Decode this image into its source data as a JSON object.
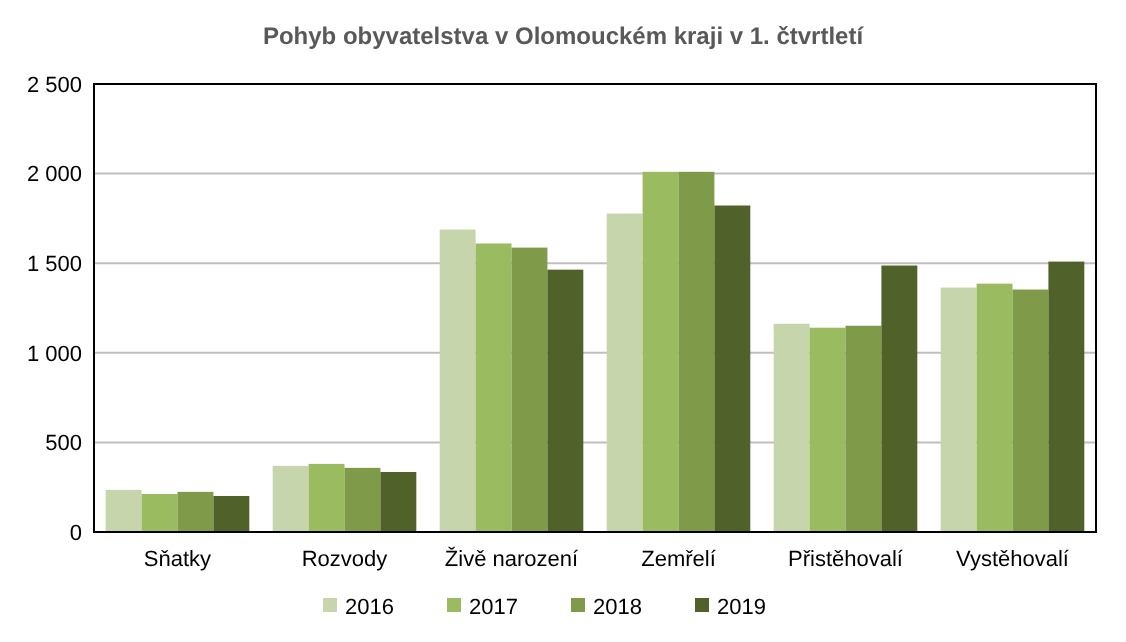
{
  "chart_data": {
    "type": "bar",
    "title": "Pohyb obyvatelstva  v Olomouckém kraji v 1. čtvrtletí",
    "categories": [
      "Sňatky",
      "Rozvody",
      "Živě narození",
      "Zemřelí",
      "Přistěhovalí",
      "Vystěhovalí"
    ],
    "series": [
      {
        "name": "2016",
        "color": "#c6d5ac",
        "values": [
          235,
          369,
          1688,
          1777,
          1162,
          1364
        ]
      },
      {
        "name": "2017",
        "color": "#9bbb61",
        "values": [
          212,
          380,
          1610,
          2010,
          1140,
          1386
        ]
      },
      {
        "name": "2018",
        "color": "#7f9a49",
        "values": [
          224,
          358,
          1587,
          2010,
          1151,
          1353
        ]
      },
      {
        "name": "2019",
        "color": "#506129",
        "values": [
          201,
          335,
          1464,
          1822,
          1487,
          1509
        ]
      }
    ],
    "ylim": [
      0,
      2500
    ],
    "yticks": [
      {
        "value": 0,
        "label": "0"
      },
      {
        "value": 500,
        "label": "500"
      },
      {
        "value": 1000,
        "label": "1 000"
      },
      {
        "value": 1500,
        "label": "1 500"
      },
      {
        "value": 2000,
        "label": "2 000"
      },
      {
        "value": 2500,
        "label": "2 500"
      }
    ],
    "grid": true,
    "legend": "bottom"
  }
}
